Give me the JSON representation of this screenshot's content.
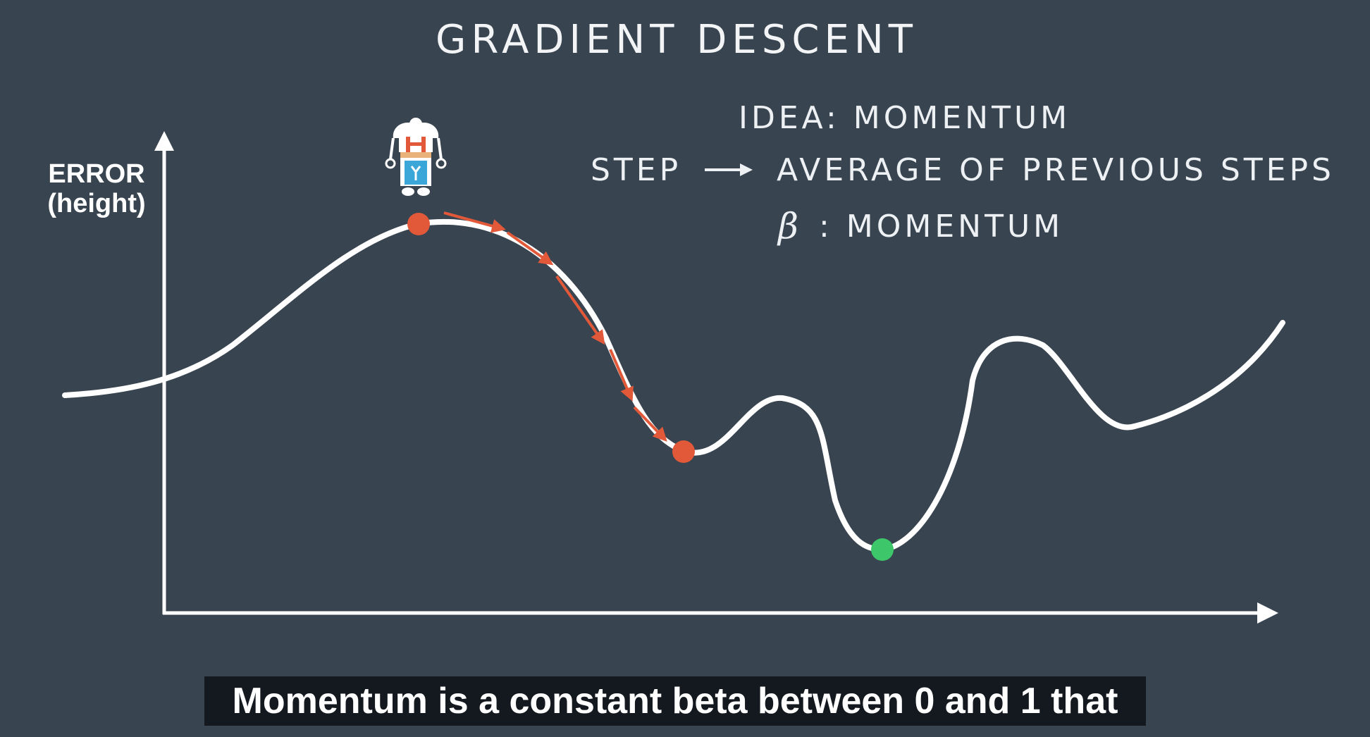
{
  "slide": {
    "title": "GRADIENT DESCENT",
    "y_axis_label_line1": "ERROR",
    "y_axis_label_line2": "(height)"
  },
  "idea": {
    "title": "IDEA: MOMENTUM",
    "step_label": "STEP",
    "step_description": "AVERAGE OF PREVIOUS STEPS",
    "beta_symbol": "β",
    "beta_description": ": MOMENTUM"
  },
  "caption": {
    "text": "Momentum is a constant beta between 0 and 1 that"
  },
  "colors": {
    "background": "#384450",
    "curve": "#ffffff",
    "step_point": "#e2593a",
    "step_arrow": "#e2593a",
    "global_minimum": "#3ec76a",
    "caption_background": "#14191f"
  },
  "icons": {
    "robot": "robot-icon",
    "step_arrow": "right-arrow-icon"
  }
}
